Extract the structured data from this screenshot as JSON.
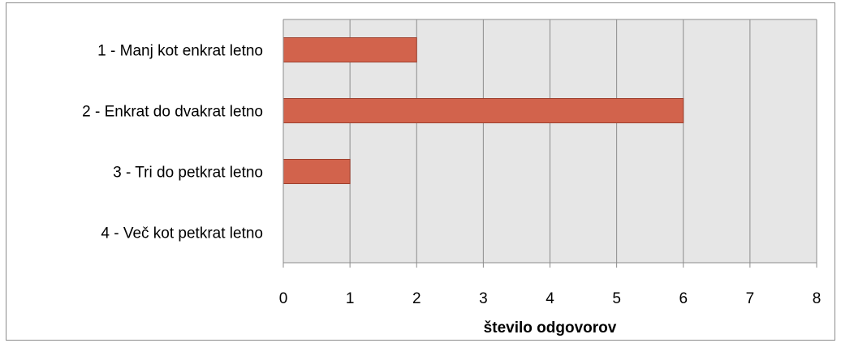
{
  "chart_data": {
    "type": "bar",
    "orientation": "horizontal",
    "categories": [
      "1 - Manj kot enkrat letno",
      "2 - Enkrat do dvakrat letno",
      "3 - Tri do petkrat letno",
      "4 - Več kot petkrat letno"
    ],
    "values": [
      2,
      6,
      1,
      0
    ],
    "xlabel": "število odgovorov",
    "ylabel": "",
    "title": "",
    "xlim": [
      0,
      8
    ],
    "xticks": [
      "0",
      "1",
      "2",
      "3",
      "4",
      "5",
      "6",
      "7",
      "8"
    ],
    "grid": true,
    "legend": "none",
    "colors": {
      "bar_fill": "#D2634C",
      "bar_stroke": "#9E3F2D",
      "plot_background": "#E6E6E6",
      "grid": "#8C8C8C"
    }
  }
}
